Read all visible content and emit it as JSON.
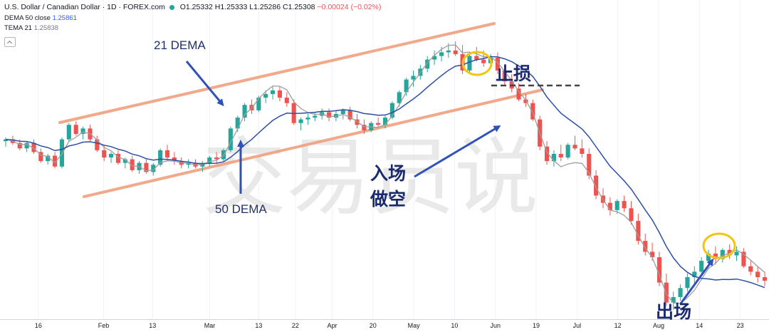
{
  "header": {
    "symbol": "U.S. Dollar / Canadian Dollar · 1D · FOREX.com",
    "open": "O1.25332",
    "high": "H1.25333",
    "low": "L1.25286",
    "close": "C1.25308",
    "change": "−0.00024 (−0.02%)"
  },
  "indicators": [
    {
      "label": "DEMA 50 close",
      "value": "1.25861"
    },
    {
      "label": "TEMA 21",
      "value": "1.25838"
    }
  ],
  "annotations": {
    "dema21": "21 DEMA",
    "dema50": "50 DEMA",
    "stop_loss": "止损",
    "entry_line1": "入场",
    "entry_line2": "做空",
    "exit": "出场"
  },
  "watermark": "交易员说",
  "colors": {
    "up": "#26a69a",
    "down": "#ef5350",
    "dema50": "#2d4fa3",
    "tema21": "#9e9e9e",
    "channel": "#f0a07c",
    "circle": "#f2c511",
    "annotation": "#1a2b6d"
  },
  "chart_data": {
    "type": "candlestick",
    "x_ticks": [
      "16",
      "Feb",
      "13",
      "Mar",
      "13",
      "22",
      "Apr",
      "20",
      "May",
      "10",
      "Jun",
      "19",
      "Jul",
      "12",
      "Aug",
      "14",
      "23"
    ],
    "candles": [
      [
        1.283,
        1.285,
        1.28,
        1.284
      ],
      [
        1.284,
        1.286,
        1.281,
        1.282
      ],
      [
        1.282,
        1.284,
        1.278,
        1.279
      ],
      [
        1.279,
        1.283,
        1.277,
        1.282
      ],
      [
        1.282,
        1.284,
        1.276,
        1.277
      ],
      [
        1.277,
        1.279,
        1.271,
        1.272
      ],
      [
        1.272,
        1.276,
        1.27,
        1.275
      ],
      [
        1.275,
        1.277,
        1.268,
        1.269
      ],
      [
        1.269,
        1.285,
        1.268,
        1.284
      ],
      [
        1.284,
        1.293,
        1.283,
        1.292
      ],
      [
        1.292,
        1.294,
        1.286,
        1.287
      ],
      [
        1.287,
        1.291,
        1.284,
        1.29
      ],
      [
        1.29,
        1.292,
        1.283,
        1.284
      ],
      [
        1.284,
        1.286,
        1.277,
        1.278
      ],
      [
        1.278,
        1.281,
        1.272,
        1.274
      ],
      [
        1.274,
        1.277,
        1.271,
        1.276
      ],
      [
        1.276,
        1.278,
        1.27,
        1.271
      ],
      [
        1.271,
        1.274,
        1.268,
        1.273
      ],
      [
        1.273,
        1.275,
        1.266,
        1.267
      ],
      [
        1.267,
        1.272,
        1.265,
        1.271
      ],
      [
        1.271,
        1.273,
        1.265,
        1.266
      ],
      [
        1.266,
        1.271,
        1.264,
        1.27
      ],
      [
        1.27,
        1.279,
        1.269,
        1.278
      ],
      [
        1.278,
        1.281,
        1.272,
        1.274
      ],
      [
        1.274,
        1.277,
        1.27,
        1.272
      ],
      [
        1.272,
        1.274,
        1.268,
        1.27
      ],
      [
        1.27,
        1.273,
        1.268,
        1.271
      ],
      [
        1.271,
        1.273,
        1.268,
        1.269
      ],
      [
        1.269,
        1.272,
        1.266,
        1.271
      ],
      [
        1.271,
        1.275,
        1.269,
        1.274
      ],
      [
        1.274,
        1.277,
        1.271,
        1.273
      ],
      [
        1.273,
        1.279,
        1.272,
        1.278
      ],
      [
        1.278,
        1.291,
        1.277,
        1.29
      ],
      [
        1.29,
        1.297,
        1.288,
        1.296
      ],
      [
        1.296,
        1.304,
        1.294,
        1.303
      ],
      [
        1.303,
        1.306,
        1.298,
        1.3
      ],
      [
        1.3,
        1.308,
        1.299,
        1.307
      ],
      [
        1.307,
        1.311,
        1.304,
        1.309
      ],
      [
        1.309,
        1.313,
        1.306,
        1.311
      ],
      [
        1.311,
        1.313,
        1.305,
        1.307
      ],
      [
        1.307,
        1.31,
        1.302,
        1.304
      ],
      [
        1.304,
        1.306,
        1.292,
        1.293
      ],
      [
        1.293,
        1.296,
        1.289,
        1.295
      ],
      [
        1.295,
        1.298,
        1.292,
        1.296
      ],
      [
        1.296,
        1.299,
        1.294,
        1.297
      ],
      [
        1.297,
        1.301,
        1.295,
        1.299
      ],
      [
        1.299,
        1.301,
        1.294,
        1.296
      ],
      [
        1.296,
        1.3,
        1.294,
        1.298
      ],
      [
        1.298,
        1.301,
        1.295,
        1.3
      ],
      [
        1.3,
        1.302,
        1.294,
        1.295
      ],
      [
        1.295,
        1.298,
        1.29,
        1.292
      ],
      [
        1.292,
        1.295,
        1.287,
        1.289
      ],
      [
        1.289,
        1.294,
        1.288,
        1.293
      ],
      [
        1.293,
        1.296,
        1.291,
        1.292
      ],
      [
        1.292,
        1.297,
        1.29,
        1.296
      ],
      [
        1.296,
        1.305,
        1.295,
        1.304
      ],
      [
        1.304,
        1.311,
        1.302,
        1.31
      ],
      [
        1.31,
        1.318,
        1.308,
        1.317
      ],
      [
        1.317,
        1.322,
        1.313,
        1.319
      ],
      [
        1.319,
        1.325,
        1.317,
        1.323
      ],
      [
        1.323,
        1.33,
        1.321,
        1.328
      ],
      [
        1.328,
        1.333,
        1.325,
        1.33
      ],
      [
        1.33,
        1.335,
        1.327,
        1.332
      ],
      [
        1.332,
        1.337,
        1.329,
        1.333
      ],
      [
        1.333,
        1.338,
        1.33,
        1.331
      ],
      [
        1.331,
        1.336,
        1.32,
        1.322
      ],
      [
        1.322,
        1.331,
        1.32,
        1.33
      ],
      [
        1.33,
        1.335,
        1.327,
        1.328
      ],
      [
        1.328,
        1.333,
        1.324,
        1.326
      ],
      [
        1.326,
        1.331,
        1.323,
        1.329
      ],
      [
        1.329,
        1.332,
        1.32,
        1.322
      ],
      [
        1.322,
        1.325,
        1.314,
        1.316
      ],
      [
        1.316,
        1.32,
        1.31,
        1.312
      ],
      [
        1.312,
        1.315,
        1.305,
        1.306
      ],
      [
        1.306,
        1.309,
        1.302,
        1.304
      ],
      [
        1.304,
        1.306,
        1.294,
        1.295
      ],
      [
        1.295,
        1.297,
        1.278,
        1.28
      ],
      [
        1.28,
        1.283,
        1.27,
        1.272
      ],
      [
        1.272,
        1.278,
        1.269,
        1.276
      ],
      [
        1.276,
        1.281,
        1.272,
        1.274
      ],
      [
        1.274,
        1.282,
        1.273,
        1.281
      ],
      [
        1.281,
        1.286,
        1.278,
        1.279
      ],
      [
        1.279,
        1.284,
        1.274,
        1.276
      ],
      [
        1.276,
        1.279,
        1.262,
        1.264
      ],
      [
        1.264,
        1.267,
        1.251,
        1.253
      ],
      [
        1.253,
        1.257,
        1.246,
        1.249
      ],
      [
        1.249,
        1.252,
        1.242,
        1.245
      ],
      [
        1.245,
        1.251,
        1.243,
        1.25
      ],
      [
        1.25,
        1.253,
        1.244,
        1.246
      ],
      [
        1.246,
        1.25,
        1.237,
        1.239
      ],
      [
        1.239,
        1.243,
        1.226,
        1.228
      ],
      [
        1.228,
        1.232,
        1.22,
        1.222
      ],
      [
        1.222,
        1.227,
        1.217,
        1.219
      ],
      [
        1.219,
        1.222,
        1.203,
        1.205
      ],
      [
        1.205,
        1.21,
        1.192,
        1.194
      ],
      [
        1.194,
        1.2,
        1.19,
        1.197
      ],
      [
        1.197,
        1.204,
        1.195,
        1.202
      ],
      [
        1.202,
        1.21,
        1.2,
        1.208
      ],
      [
        1.208,
        1.214,
        1.204,
        1.211
      ],
      [
        1.211,
        1.219,
        1.209,
        1.217
      ],
      [
        1.217,
        1.223,
        1.214,
        1.221
      ],
      [
        1.221,
        1.225,
        1.215,
        1.218
      ],
      [
        1.218,
        1.224,
        1.216,
        1.223
      ],
      [
        1.223,
        1.226,
        1.218,
        1.22
      ],
      [
        1.22,
        1.225,
        1.217,
        1.222
      ],
      [
        1.222,
        1.224,
        1.213,
        1.214
      ],
      [
        1.214,
        1.217,
        1.209,
        1.211
      ],
      [
        1.211,
        1.214,
        1.205,
        1.208
      ],
      [
        1.208,
        1.211,
        1.203,
        1.206
      ]
    ],
    "series": [
      {
        "name": "DEMA 50 close"
      },
      {
        "name": "TEMA 21"
      }
    ]
  }
}
